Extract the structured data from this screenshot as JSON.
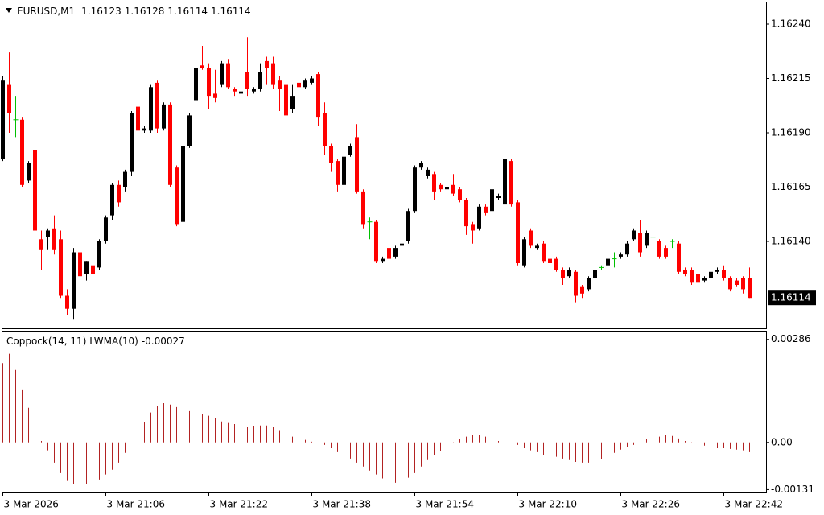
{
  "chart_data": [
    {
      "type": "candlestick",
      "title": "EURUSD,M1",
      "up_color": "#000000",
      "down_color": "#ff0000",
      "doji_color": "#00c000",
      "open": [
        1.16178,
        1.16212,
        1.16196,
        1.16196,
        1.16168,
        1.16182,
        1.16141,
        1.16142,
        1.16146,
        1.16141,
        1.16115,
        1.16109,
        1.16135,
        1.16125,
        1.16129,
        1.16128,
        1.1614,
        1.16152,
        1.16166,
        1.16165,
        1.16172,
        1.16202,
        1.16191,
        1.16191,
        1.16213,
        1.16192,
        1.16203,
        1.16174,
        1.16149,
        1.16184,
        1.16205,
        1.16221,
        1.1622,
        1.16208,
        1.16212,
        1.16222,
        1.1621,
        1.16208,
        1.16218,
        1.16209,
        1.1621,
        1.16223,
        1.16222,
        1.16214,
        1.16212,
        1.16201,
        1.16213,
        1.16211,
        1.16213,
        1.16217,
        1.16199,
        1.16184,
        1.16177,
        1.16166,
        1.1618,
        1.16188,
        1.16163,
        1.16149,
        1.16149,
        1.16131,
        1.16137,
        1.16133,
        1.16138,
        1.1614,
        1.16154,
        1.16174,
        1.1617,
        1.16171,
        1.16166,
        1.16164,
        1.16166,
        1.16164,
        1.16159,
        1.16148,
        1.16146,
        1.16156,
        1.16154,
        1.1616,
        1.16157,
        1.16177,
        1.16158,
        1.16129,
        1.16145,
        1.16137,
        1.16139,
        1.16132,
        1.16132,
        1.16127,
        1.16124,
        1.16126,
        1.16119,
        1.16118,
        1.16123,
        1.16128,
        1.16129,
        1.16132,
        1.16133,
        1.16134,
        1.16141,
        1.16144,
        1.16138,
        1.16142,
        1.1614,
        1.16137,
        1.1614,
        1.16139,
        1.16127,
        1.16127,
        1.16125,
        1.16122,
        1.16123,
        1.16126,
        1.16127,
        1.16123,
        1.16122,
        1.16123,
        1.16123
      ],
      "high": [
        1.16216,
        1.16227,
        1.16207,
        1.16197,
        1.16177,
        1.16185,
        1.16145,
        1.16146,
        1.16152,
        1.16145,
        1.16118,
        1.16137,
        1.16136,
        1.16131,
        1.16133,
        1.16141,
        1.16152,
        1.16167,
        1.16168,
        1.16173,
        1.162,
        1.16203,
        1.16193,
        1.16212,
        1.16214,
        1.16204,
        1.16204,
        1.16175,
        1.16185,
        1.16199,
        1.16221,
        1.1623,
        1.16222,
        1.16219,
        1.16223,
        1.16224,
        1.16211,
        1.1621,
        1.16234,
        1.16211,
        1.16222,
        1.16225,
        1.16225,
        1.16216,
        1.16213,
        1.16212,
        1.16224,
        1.16215,
        1.16216,
        1.16218,
        1.16204,
        1.16185,
        1.16178,
        1.1618,
        1.16185,
        1.16194,
        1.16164,
        1.16151,
        1.1615,
        1.16133,
        1.16138,
        1.16138,
        1.1614,
        1.16155,
        1.16175,
        1.16177,
        1.16174,
        1.16172,
        1.16167,
        1.16166,
        1.16171,
        1.16165,
        1.1616,
        1.16149,
        1.16157,
        1.16157,
        1.16168,
        1.16162,
        1.16179,
        1.16178,
        1.16159,
        1.16142,
        1.16146,
        1.16139,
        1.1614,
        1.16133,
        1.16133,
        1.16128,
        1.16128,
        1.16127,
        1.1612,
        1.16124,
        1.16128,
        1.16129,
        1.16133,
        1.16135,
        1.16135,
        1.1614,
        1.16146,
        1.1615,
        1.16145,
        1.16143,
        1.16141,
        1.16138,
        1.16141,
        1.1614,
        1.16128,
        1.16128,
        1.16126,
        1.16124,
        1.16127,
        1.16128,
        1.16129,
        1.16124,
        1.16123,
        1.16124,
        1.16128
      ],
      "low": [
        1.16177,
        1.1619,
        1.16188,
        1.16165,
        1.16167,
        1.16144,
        1.16127,
        1.16136,
        1.16134,
        1.16114,
        1.16106,
        1.16104,
        1.16102,
        1.16122,
        1.16121,
        1.16127,
        1.16139,
        1.1615,
        1.16156,
        1.16163,
        1.1617,
        1.16178,
        1.1619,
        1.1619,
        1.1619,
        1.16191,
        1.16165,
        1.16147,
        1.16148,
        1.16183,
        1.16204,
        1.16219,
        1.16201,
        1.16204,
        1.16211,
        1.1621,
        1.16207,
        1.16207,
        1.16207,
        1.16208,
        1.16209,
        1.16212,
        1.1621,
        1.162,
        1.16192,
        1.16199,
        1.16207,
        1.1621,
        1.16212,
        1.16193,
        1.1618,
        1.16172,
        1.16163,
        1.16165,
        1.16179,
        1.16162,
        1.16146,
        1.16141,
        1.1613,
        1.1613,
        1.16127,
        1.16132,
        1.16137,
        1.16139,
        1.16153,
        1.16173,
        1.16169,
        1.16159,
        1.16163,
        1.16163,
        1.16161,
        1.16158,
        1.16143,
        1.16139,
        1.16145,
        1.16152,
        1.16152,
        1.16159,
        1.16156,
        1.16156,
        1.16129,
        1.16128,
        1.16137,
        1.16136,
        1.1613,
        1.16129,
        1.16126,
        1.1612,
        1.16123,
        1.16112,
        1.16114,
        1.16117,
        1.16122,
        1.16127,
        1.16128,
        1.16128,
        1.16132,
        1.16133,
        1.1614,
        1.16133,
        1.16137,
        1.16133,
        1.16132,
        1.16132,
        1.16137,
        1.16125,
        1.16124,
        1.1612,
        1.16119,
        1.16121,
        1.16122,
        1.16125,
        1.16122,
        1.16117,
        1.16119,
        1.16116,
        1.16114
      ],
      "close": [
        1.16214,
        1.16199,
        1.16196,
        1.16166,
        1.16176,
        1.16145,
        1.16136,
        1.16145,
        1.16136,
        1.16115,
        1.16109,
        1.16135,
        1.16124,
        1.16131,
        1.16125,
        1.1614,
        1.16151,
        1.16166,
        1.16158,
        1.16172,
        1.16199,
        1.16191,
        1.16192,
        1.16211,
        1.16192,
        1.16203,
        1.16166,
        1.16148,
        1.16184,
        1.16198,
        1.1622,
        1.1622,
        1.16207,
        1.16206,
        1.16222,
        1.16211,
        1.16209,
        1.16209,
        1.1621,
        1.1621,
        1.16218,
        1.1622,
        1.16212,
        1.1621,
        1.16198,
        1.16207,
        1.16211,
        1.16214,
        1.16215,
        1.16197,
        1.16184,
        1.16176,
        1.16166,
        1.16179,
        1.16184,
        1.16163,
        1.16148,
        1.16149,
        1.16131,
        1.16132,
        1.16132,
        1.16137,
        1.16139,
        1.16154,
        1.16174,
        1.16176,
        1.16173,
        1.16163,
        1.16164,
        1.16165,
        1.16162,
        1.16159,
        1.16147,
        1.16145,
        1.16156,
        1.16153,
        1.16164,
        1.16161,
        1.16178,
        1.16157,
        1.1613,
        1.16141,
        1.16138,
        1.16138,
        1.16131,
        1.1613,
        1.16127,
        1.16123,
        1.16127,
        1.16115,
        1.16116,
        1.16123,
        1.16127,
        1.16128,
        1.16132,
        1.16132,
        1.16134,
        1.16139,
        1.16145,
        1.16135,
        1.16144,
        1.16142,
        1.16133,
        1.16133,
        1.1614,
        1.16126,
        1.16125,
        1.16121,
        1.16121,
        1.16123,
        1.16126,
        1.16127,
        1.16123,
        1.16118,
        1.1612,
        1.16118,
        1.16114
      ],
      "ylim": [
        1.161,
        1.1625
      ],
      "yticks": [
        {
          "value": 1.1624,
          "label": "1.16240"
        },
        {
          "value": 1.16215,
          "label": "1.16215"
        },
        {
          "value": 1.1619,
          "label": "1.16190"
        },
        {
          "value": 1.16165,
          "label": "1.16165"
        },
        {
          "value": 1.1614,
          "label": "1.16140"
        }
      ]
    },
    {
      "type": "histogram-line",
      "title": "Coppock(14, 11) LWMA(10)",
      "color": "#b22222",
      "categories": [
        "3 Mar 2026",
        null,
        null,
        null,
        null,
        null,
        null,
        null,
        null,
        null,
        null,
        null,
        null,
        null,
        null,
        null,
        "3 Mar 21:06",
        null,
        null,
        null,
        null,
        null,
        null,
        null,
        null,
        null,
        null,
        null,
        null,
        null,
        null,
        null,
        "3 Mar 21:22",
        null,
        null,
        null,
        null,
        null,
        null,
        null,
        null,
        null,
        null,
        null,
        null,
        null,
        null,
        null,
        "3 Mar 21:38",
        null,
        null,
        null,
        null,
        null,
        null,
        null,
        null,
        null,
        null,
        null,
        null,
        null,
        null,
        null,
        "3 Mar 21:54",
        null,
        null,
        null,
        null,
        null,
        null,
        null,
        null,
        null,
        null,
        null,
        null,
        null,
        null,
        null,
        "3 Mar 22:10",
        null,
        null,
        null,
        null,
        null,
        null,
        null,
        null,
        null,
        null,
        null,
        null,
        null,
        null,
        null,
        "3 Mar 22:26",
        null,
        null,
        null,
        null,
        null,
        null,
        null,
        null,
        null,
        null,
        null,
        null,
        null,
        null,
        null,
        "3 Mar 22:42",
        null,
        null,
        null,
        null
      ],
      "values": [
        0.0022,
        0.00246,
        0.00201,
        0.00145,
        0.00096,
        0.00045,
        4e-05,
        -0.00022,
        -0.00056,
        -0.00085,
        -0.00107,
        -0.00116,
        -0.00118,
        -0.00116,
        -0.00112,
        -0.00103,
        -0.00089,
        -0.00076,
        -0.00056,
        -0.00029,
        0,
        0.00027,
        0.00056,
        0.00083,
        0.00101,
        0.00109,
        0.00105,
        0.00098,
        0.00094,
        0.00087,
        0.00085,
        0.00078,
        0.00074,
        0.00067,
        0.00058,
        0.00054,
        0.00051,
        0.00045,
        0.00042,
        0.00045,
        0.00047,
        0.00047,
        0.00042,
        0.00034,
        0.00025,
        0.00016,
        9e-05,
        7e-05,
        2e-05,
        0,
        -7e-05,
        -0.00016,
        -0.00027,
        -0.00036,
        -0.00045,
        -0.00056,
        -0.00067,
        -0.00078,
        -0.00089,
        -0.001,
        -0.00107,
        -0.00112,
        -0.00107,
        -0.00098,
        -0.00085,
        -0.00067,
        -0.00049,
        -0.00036,
        -0.00025,
        -0.00013,
        -2e-05,
        9e-05,
        0.00016,
        0.0002,
        0.0002,
        0.00016,
        9e-05,
        4e-05,
        2e-05,
        0,
        -7e-05,
        -0.00016,
        -0.00022,
        -0.00027,
        -0.00034,
        -0.00038,
        -0.0004,
        -0.00045,
        -0.00049,
        -0.00054,
        -0.00056,
        -0.00056,
        -0.00051,
        -0.00047,
        -0.00038,
        -0.00029,
        -0.0002,
        -0.00013,
        -7e-05,
        0,
        9e-05,
        0.00013,
        0.00016,
        0.0002,
        0.00018,
        0.00011,
        4e-05,
        -2e-05,
        -4e-05,
        -9e-05,
        -0.00011,
        -0.00016,
        -0.00016,
        -0.00018,
        -0.0002,
        -0.00022,
        -0.00027
      ],
      "ylim": [
        -0.00139,
        0.0031
      ],
      "yticks": [
        0.00286,
        {
          "value": 0,
          "label": "0.00"
        },
        -0.00131
      ]
    }
  ]
}
